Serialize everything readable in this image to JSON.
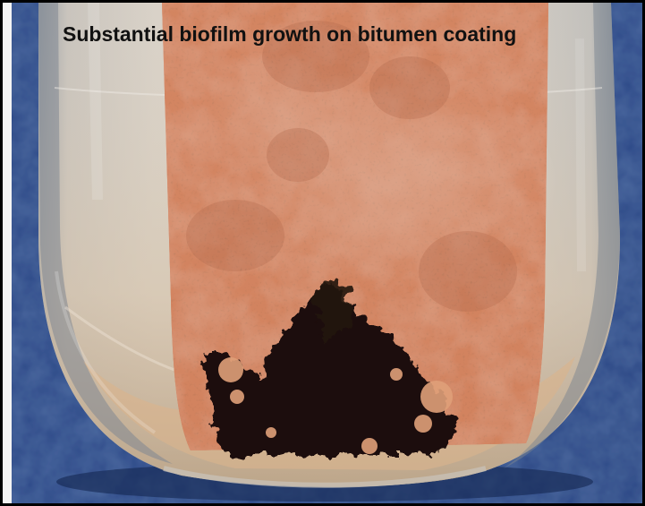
{
  "figure": {
    "caption": "Substantial biofilm growth on bitumen coating"
  }
}
